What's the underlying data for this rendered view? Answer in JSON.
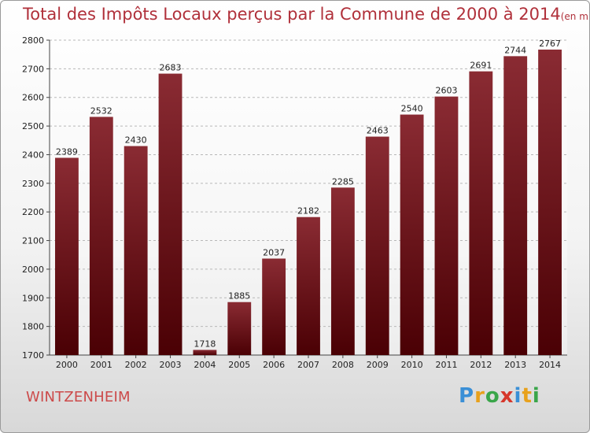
{
  "header": {
    "title": "Total des Impôts Locaux perçus par la Commune de 2000 à 2014",
    "unit": "(en milliers d'€)"
  },
  "footer": {
    "commune": "WINTZENHEIM",
    "logo_letters": [
      {
        "ch": "P",
        "color": "#3a8fd6"
      },
      {
        "ch": "r",
        "color": "#e8a11c"
      },
      {
        "ch": "o",
        "color": "#3aa64a"
      },
      {
        "ch": "x",
        "color": "#d6372b"
      },
      {
        "ch": "i",
        "color": "#3a8fd6"
      },
      {
        "ch": "t",
        "color": "#e8a11c"
      },
      {
        "ch": "i",
        "color": "#3aa64a"
      }
    ]
  },
  "chart_data": {
    "type": "bar",
    "categories": [
      "2000",
      "2001",
      "2002",
      "2003",
      "2004",
      "2005",
      "2006",
      "2007",
      "2008",
      "2009",
      "2010",
      "2011",
      "2012",
      "2013",
      "2014"
    ],
    "values": [
      2389,
      2532,
      2430,
      2683,
      1718,
      1885,
      2037,
      2182,
      2285,
      2463,
      2540,
      2603,
      2691,
      2744,
      2767
    ],
    "ylim": [
      1700,
      2800
    ],
    "yticks": [
      1700,
      1800,
      1900,
      2000,
      2100,
      2200,
      2300,
      2400,
      2500,
      2600,
      2700,
      2800
    ],
    "grid": true,
    "bar_color_top": "#8a2b33",
    "bar_color_bottom": "#4a0004"
  }
}
